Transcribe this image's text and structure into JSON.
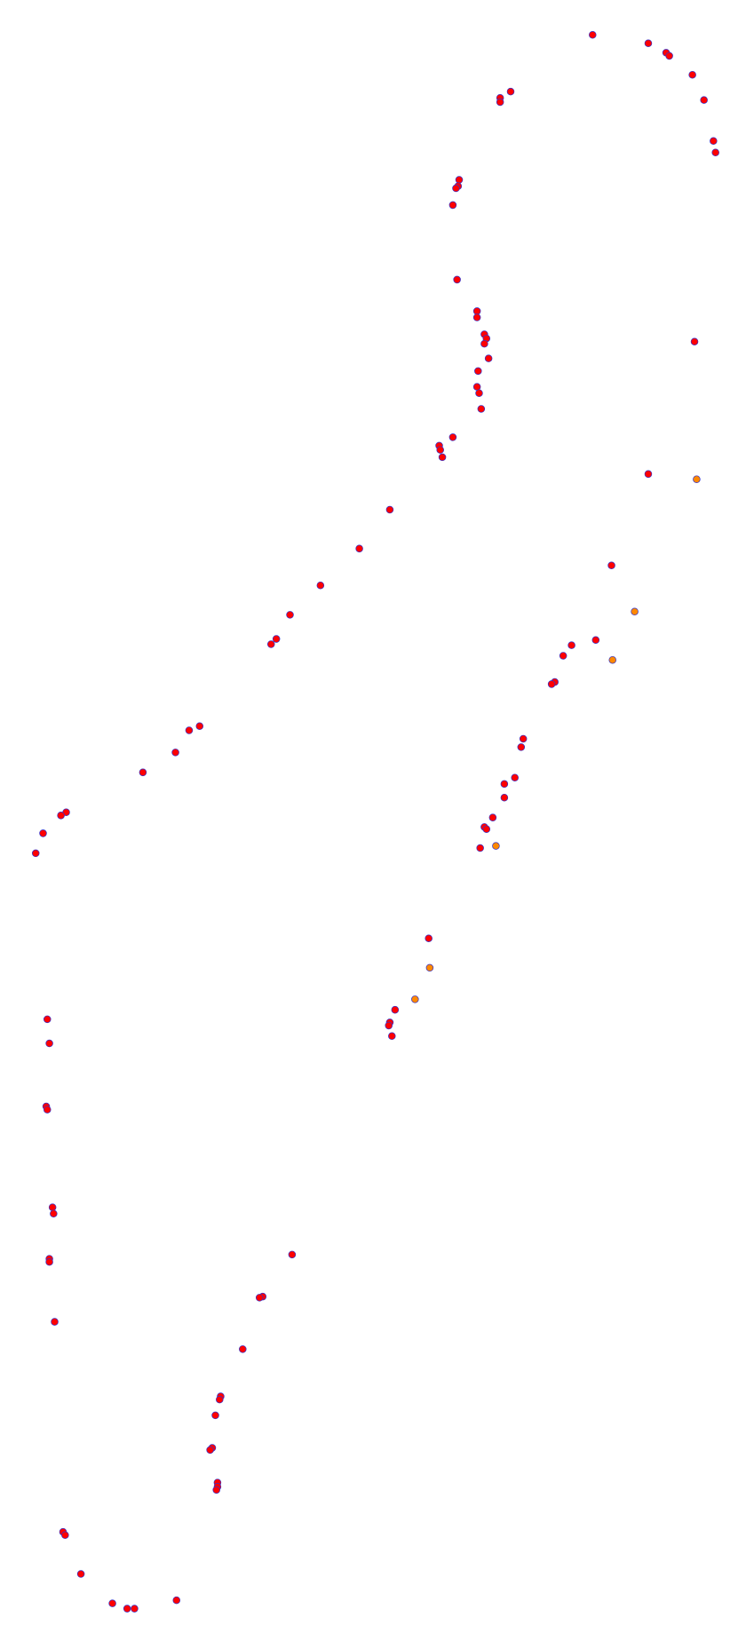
{
  "chart_data": {
    "type": "scatter",
    "xlim": [
      0,
      710
    ],
    "ylim": [
      1554,
      0
    ],
    "marker_stroke": "#3333cc",
    "series": [
      {
        "color": "#ff0000",
        "x": [
          564,
          617,
          634,
          637,
          659,
          670,
          679,
          681,
          486,
          476,
          476,
          437,
          436,
          434,
          431,
          435,
          454,
          454,
          461,
          463,
          461,
          465,
          455,
          454,
          456,
          458,
          431,
          418,
          419,
          421,
          661,
          617,
          371,
          342,
          305,
          276,
          263,
          258,
          190,
          180,
          167,
          136,
          63,
          58,
          41,
          34,
          582,
          567,
          544,
          536,
          528,
          525,
          498,
          496,
          490,
          480,
          480,
          469,
          461,
          463,
          457,
          408,
          376,
          371,
          370,
          373,
          45,
          47,
          44,
          45,
          50,
          51,
          47,
          47,
          52,
          278,
          250,
          247,
          231,
          210,
          209,
          205,
          202,
          200,
          207,
          207,
          206,
          60,
          62,
          77,
          107,
          121,
          128,
          168
        ],
        "values": [
          33,
          41,
          50,
          53,
          71,
          95,
          134,
          145,
          87,
          93,
          97,
          171,
          177,
          179,
          195,
          266,
          296,
          302,
          318,
          322,
          327,
          341,
          353,
          368,
          374,
          389,
          416,
          424,
          428,
          435,
          325,
          451,
          485,
          522,
          557,
          585,
          608,
          613,
          691,
          695,
          716,
          735,
          773,
          776,
          793,
          812,
          538,
          609,
          614,
          624,
          649,
          651,
          703,
          711,
          740,
          746,
          759,
          778,
          787,
          789,
          807,
          893,
          961,
          973,
          976,
          986,
          970,
          993,
          1053,
          1056,
          1149,
          1155,
          1198,
          1201,
          1258,
          1194,
          1234,
          1235,
          1284,
          1329,
          1332,
          1347,
          1378,
          1380,
          1411,
          1415,
          1418,
          1458,
          1461,
          1498,
          1526,
          1531,
          1531,
          1523
        ]
      },
      {
        "color": "#ff8800",
        "x": [
          663,
          604,
          583,
          472,
          409,
          395
        ],
        "values": [
          456,
          582,
          628,
          805,
          921,
          951
        ]
      }
    ]
  }
}
